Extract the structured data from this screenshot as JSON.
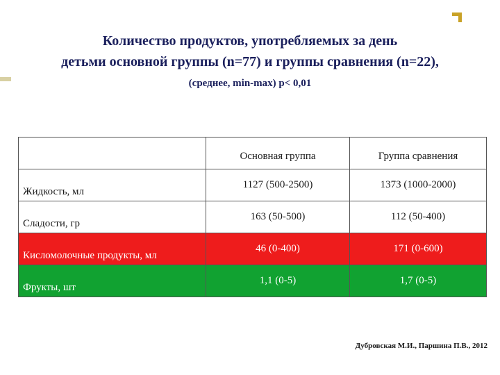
{
  "title": {
    "line1": "Количество продуктов, употребляемых за день",
    "line2": "детьми основной группы (n=77) и группы сравнения (n=22),",
    "subtitle": "(среднее, min-max) p< 0,01"
  },
  "table": {
    "headers": [
      "",
      "Основная группа",
      "Группа сравнения"
    ],
    "rows": [
      {
        "label": "Жидкость, мл",
        "main": "1127 (500-2500)",
        "compare": "1373 (1000-2000)",
        "color": "#ffffff"
      },
      {
        "label": "Сладости, гр",
        "main": "163 (50-500)",
        "compare": "112 (50-400)",
        "color": "#ffffff"
      },
      {
        "label": "Кисломолочные продукты, мл",
        "main": "46 (0-400)",
        "compare": "171 (0-600)",
        "color": "#ee1c1c"
      },
      {
        "label": "Фрукты, шт",
        "main": "1,1 (0-5)",
        "compare": "1,7 (0-5)",
        "color": "#11a231"
      }
    ]
  },
  "footer": {
    "author": "Дубровская М.И., Паршина П.В., 2012"
  },
  "colors": {
    "title": "#1a1f5c",
    "accent": "#c9a227",
    "row_red": "#ee1c1c",
    "row_green": "#11a231"
  }
}
